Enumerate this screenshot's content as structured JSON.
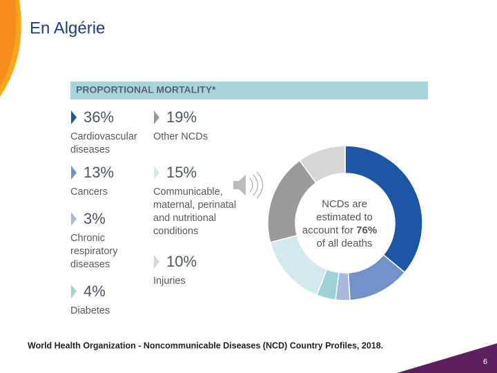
{
  "title": "En Algérie",
  "source": "World Health Organization - Noncommunicable Diseases (NCD) Country Profiles, 2018.",
  "page_number": "6",
  "chart_data": {
    "type": "donut",
    "title": "PROPORTIONAL MORTALITY*",
    "categories": [
      "Cardiovascular diseases",
      "Cancers",
      "Chronic respiratory diseases",
      "Diabetes",
      "Communicable, maternal, perinatal and nutritional conditions",
      "Other NCDs",
      "Injuries"
    ],
    "values": [
      36,
      13,
      3,
      4,
      15,
      19,
      10
    ],
    "value_labels": [
      "36%",
      "13%",
      "3%",
      "4%",
      "15%",
      "19%",
      "10%"
    ],
    "colors": [
      "#1d56a5",
      "#7292ca",
      "#aab8dd",
      "#9fd2d6",
      "#d3e9ed",
      "#9a9a9a",
      "#d7d7d7"
    ],
    "annotation": [
      "NCDs are estimated to account for",
      "76%",
      "of all deaths"
    ]
  }
}
